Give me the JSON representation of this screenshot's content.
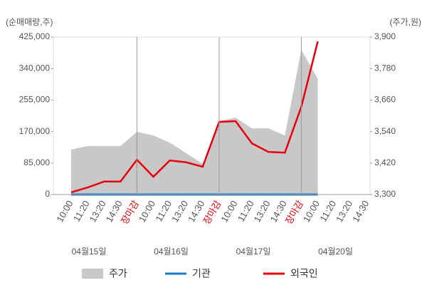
{
  "chart_data": {
    "type": "line",
    "y_label": "(순매매량,주)",
    "y2_label": "(주가,원)",
    "categories": [
      "10:00",
      "11:20",
      "13:20",
      "14:30",
      "장마감",
      "10:00",
      "11:20",
      "13:20",
      "14:30",
      "장마감",
      "10:00",
      "11:20",
      "13:20",
      "14:30",
      "장마감",
      "10:00",
      "11:20",
      "13:20",
      "14:30"
    ],
    "highlight_categories": [
      4,
      9,
      14
    ],
    "highlight_color": "#e8000b",
    "dates": [
      "04월15일",
      "04월16일",
      "04월17일",
      "04월20일"
    ],
    "date_start_categories": [
      0,
      5,
      10,
      15
    ],
    "ylim": [
      0,
      425000
    ],
    "yticks": [
      0,
      {
        "value": 85000,
        "label": "85,000"
      },
      {
        "value": 170000,
        "label": "170,000"
      },
      {
        "value": 255000,
        "label": "255,000"
      },
      {
        "value": 340000,
        "label": "340,000"
      },
      {
        "value": 425000,
        "label": "425,000"
      }
    ],
    "y2lim": [
      3300,
      3900
    ],
    "y2ticks": [
      {
        "value": 3300,
        "label": "3,300"
      },
      {
        "value": 3420,
        "label": "3,420"
      },
      {
        "value": 3540,
        "label": "3,540"
      },
      {
        "value": 3660,
        "label": "3,660"
      },
      {
        "value": 3780,
        "label": "3,780"
      },
      {
        "value": 3900,
        "label": "3,900"
      }
    ],
    "series": [
      {
        "name": "주가",
        "color": "#c8c8c8",
        "kind": "area",
        "axis": "y2",
        "values": [
          3471,
          3485,
          3485,
          3485,
          3539,
          3525,
          3498,
          3457,
          3417,
          3580,
          3593,
          3552,
          3552,
          3525,
          3851,
          3742,
          null,
          null,
          null
        ]
      },
      {
        "name": "기관",
        "color": "#1a7ac8",
        "kind": "line",
        "values": [
          0,
          0,
          0,
          0,
          0,
          0,
          0,
          0,
          0,
          0,
          0,
          0,
          0,
          0,
          0,
          0,
          null,
          null,
          null
        ]
      },
      {
        "name": "외국인",
        "color": "#e8000b",
        "kind": "line",
        "values": [
          5800,
          19000,
          35000,
          35000,
          94000,
          48000,
          92000,
          87000,
          75000,
          196000,
          198000,
          138000,
          115000,
          113000,
          237000,
          413000,
          null,
          null,
          null
        ]
      }
    ]
  }
}
